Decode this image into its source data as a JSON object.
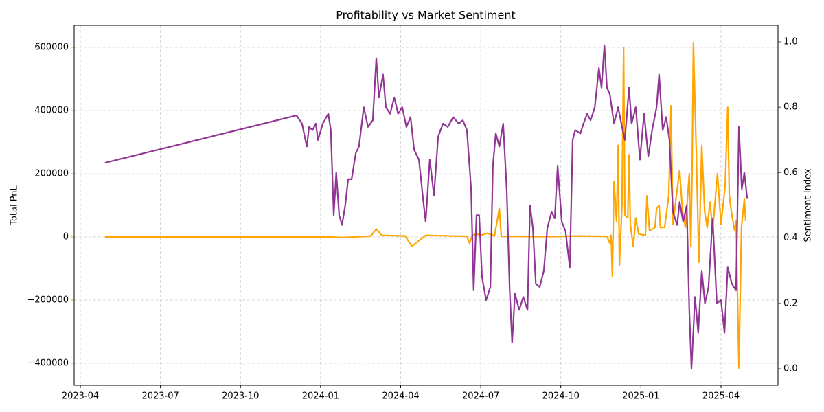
{
  "chart_data": {
    "type": "line",
    "title": "Profitability vs Market Sentiment",
    "ylabel": "Total PnL",
    "y2label": "Sentiment Index",
    "xlim": [
      2023.2307,
      2025.428
    ],
    "xticks": [
      {
        "value": 2023.25,
        "label": "2023-04"
      },
      {
        "value": 2023.5,
        "label": "2023-07"
      },
      {
        "value": 2023.75,
        "label": "2023-10"
      },
      {
        "value": 2024.0,
        "label": "2024-01"
      },
      {
        "value": 2024.25,
        "label": "2024-04"
      },
      {
        "value": 2024.5,
        "label": "2024-07"
      },
      {
        "value": 2024.75,
        "label": "2024-10"
      },
      {
        "value": 2025.0,
        "label": "2025-01"
      },
      {
        "value": 2025.25,
        "label": "2025-04"
      }
    ],
    "ylim": [
      -469565,
      669565
    ],
    "yticks": [
      {
        "value": -400000,
        "label": "−400000"
      },
      {
        "value": -200000,
        "label": "−200000"
      },
      0,
      200000,
      400000,
      600000
    ],
    "y2lim": [
      -0.0504,
      1.0504
    ],
    "y2ticks": [
      {
        "value": 0,
        "label": "0.0"
      },
      {
        "value": 0.2,
        "label": "0.2"
      },
      {
        "value": 0.4,
        "label": "0.4"
      },
      {
        "value": 0.6,
        "label": "0.6"
      },
      {
        "value": 0.8,
        "label": "0.8"
      },
      {
        "value": 1,
        "label": "1.0"
      }
    ],
    "grid": true,
    "ycolor": "#ffa500",
    "y2color": "#8b2a8f",
    "series": [
      {
        "name": "Total PnL",
        "color": "#ffa500",
        "x": [
          2023.327,
          2024.028,
          2024.071,
          2024.157,
          2024.174,
          2024.191,
          2024.264,
          2024.285,
          2024.328,
          2024.457,
          2024.465,
          2024.474,
          2024.487,
          2024.5,
          2024.521,
          2024.543,
          2024.558,
          2024.564,
          2024.714,
          2024.8,
          2024.894,
          2024.903,
          2024.907,
          2024.911,
          2024.916,
          2024.924,
          2024.929,
          2024.933,
          2024.941,
          2024.946,
          2024.95,
          2024.959,
          2024.963,
          2024.967,
          2024.976,
          2024.984,
          2024.993,
          2025.014,
          2025.019,
          2025.027,
          2025.044,
          2025.049,
          2025.057,
          2025.061,
          2025.074,
          2025.087,
          2025.094,
          2025.1,
          2025.113,
          2025.121,
          2025.13,
          2025.139,
          2025.151,
          2025.156,
          2025.16,
          2025.164,
          2025.173,
          2025.181,
          2025.19,
          2025.199,
          2025.207,
          2025.216,
          2025.224,
          2025.239,
          2025.25,
          2025.263,
          2025.271,
          2025.276,
          2025.284,
          2025.293,
          2025.297,
          2025.306,
          2025.314,
          2025.323,
          2025.327
        ],
        "values": [
          0,
          0,
          -2000,
          3000,
          25000,
          5000,
          3000,
          -30000,
          5000,
          2000,
          -20000,
          5000,
          10000,
          5000,
          12000,
          4000,
          90000,
          2000,
          1000,
          3000,
          2000,
          -20000,
          5000,
          -125000,
          175000,
          50000,
          290000,
          -90000,
          100000,
          600000,
          70000,
          60000,
          260000,
          40000,
          -30000,
          60000,
          10000,
          5000,
          130000,
          20000,
          30000,
          90000,
          100000,
          30000,
          30000,
          130000,
          415000,
          40000,
          150000,
          210000,
          80000,
          30000,
          200000,
          -30000,
          220000,
          615000,
          270000,
          -80000,
          290000,
          80000,
          30000,
          110000,
          20000,
          200000,
          40000,
          160000,
          410000,
          130000,
          70000,
          20000,
          50000,
          -415000,
          30000,
          120000,
          50000
        ]
      },
      {
        "name": "Sentiment Index",
        "color": "#8b2a8f",
        "axis": "y2",
        "x": [
          2023.327,
          2023.925,
          2023.942,
          2023.957,
          2023.964,
          2023.975,
          2023.985,
          2023.992,
          2024.007,
          2024.024,
          2024.032,
          2024.041,
          2024.049,
          2024.058,
          2024.067,
          2024.077,
          2024.086,
          2024.097,
          2024.11,
          2024.12,
          2024.135,
          2024.148,
          2024.163,
          2024.174,
          2024.182,
          2024.195,
          2024.204,
          2024.217,
          2024.23,
          2024.242,
          2024.255,
          2024.268,
          2024.281,
          2024.292,
          2024.307,
          2024.32,
          2024.328,
          2024.341,
          2024.354,
          2024.367,
          2024.382,
          2024.397,
          2024.414,
          2024.431,
          2024.444,
          2024.457,
          2024.47,
          2024.478,
          2024.487,
          2024.495,
          2024.504,
          2024.517,
          2024.53,
          2024.538,
          2024.547,
          2024.558,
          2024.57,
          2024.581,
          2024.59,
          2024.598,
          2024.607,
          2024.62,
          2024.633,
          2024.646,
          2024.654,
          2024.663,
          2024.672,
          2024.684,
          2024.697,
          2024.708,
          2024.721,
          2024.731,
          2024.74,
          2024.753,
          2024.765,
          2024.778,
          2024.787,
          2024.795,
          2024.811,
          2024.821,
          2024.832,
          2024.843,
          2024.856,
          2024.869,
          2024.877,
          2024.886,
          2024.894,
          2024.903,
          2024.916,
          2024.929,
          2024.941,
          2024.95,
          2024.963,
          2024.971,
          2024.984,
          2024.997,
          2025.01,
          2025.023,
          2025.035,
          2025.049,
          2025.057,
          2025.068,
          2025.079,
          2025.089,
          2025.1,
          2025.113,
          2025.121,
          2025.132,
          2025.143,
          2025.151,
          2025.158,
          2025.169,
          2025.179,
          2025.19,
          2025.2,
          2025.211,
          2025.224,
          2025.237,
          2025.25,
          2025.261,
          2025.271,
          2025.284,
          2025.297,
          2025.306,
          2025.315,
          2025.323,
          2025.332
        ],
        "values": [
          0.63,
          0.775,
          0.75,
          0.68,
          0.74,
          0.73,
          0.75,
          0.7,
          0.75,
          0.78,
          0.73,
          0.47,
          0.6,
          0.47,
          0.44,
          0.5,
          0.58,
          0.58,
          0.66,
          0.68,
          0.8,
          0.74,
          0.76,
          0.95,
          0.83,
          0.9,
          0.8,
          0.78,
          0.83,
          0.78,
          0.8,
          0.74,
          0.77,
          0.67,
          0.64,
          0.52,
          0.45,
          0.64,
          0.53,
          0.71,
          0.75,
          0.74,
          0.77,
          0.75,
          0.76,
          0.73,
          0.55,
          0.24,
          0.47,
          0.47,
          0.28,
          0.21,
          0.25,
          0.62,
          0.72,
          0.68,
          0.75,
          0.55,
          0.25,
          0.08,
          0.23,
          0.18,
          0.22,
          0.18,
          0.5,
          0.43,
          0.26,
          0.25,
          0.3,
          0.43,
          0.48,
          0.46,
          0.62,
          0.45,
          0.42,
          0.31,
          0.7,
          0.73,
          0.72,
          0.75,
          0.78,
          0.76,
          0.8,
          0.92,
          0.86,
          0.99,
          0.86,
          0.84,
          0.75,
          0.8,
          0.74,
          0.7,
          0.86,
          0.75,
          0.8,
          0.64,
          0.78,
          0.65,
          0.73,
          0.8,
          0.9,
          0.73,
          0.77,
          0.7,
          0.48,
          0.44,
          0.51,
          0.45,
          0.5,
          0.18,
          0.0,
          0.22,
          0.11,
          0.3,
          0.2,
          0.25,
          0.46,
          0.2,
          0.21,
          0.11,
          0.31,
          0.26,
          0.24,
          0.74,
          0.55,
          0.6,
          0.52
        ]
      }
    ]
  }
}
